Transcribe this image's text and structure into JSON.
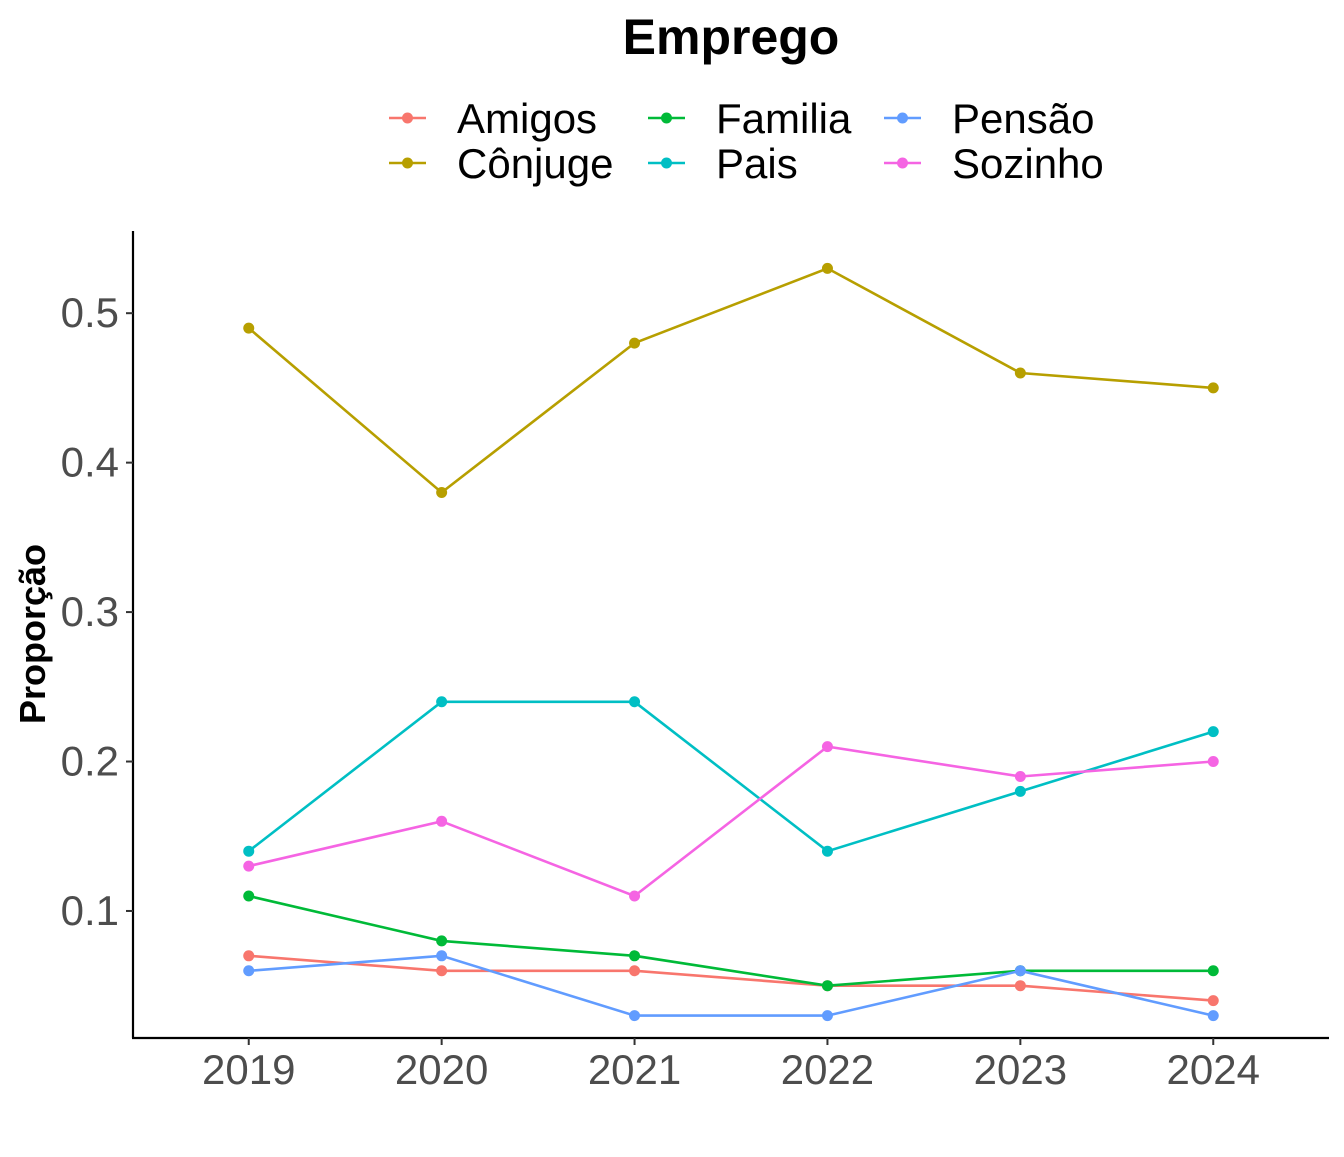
{
  "chart_data": {
    "type": "line",
    "title": "Emprego",
    "xlabel": "",
    "ylabel": "Proporção",
    "categories": [
      "2019",
      "2020",
      "2021",
      "2022",
      "2023",
      "2024"
    ],
    "ylim": [
      0.015,
      0.555
    ],
    "yticks": [
      0.1,
      0.2,
      0.3,
      0.4,
      0.5
    ],
    "ytick_labels": [
      "0.1",
      "0.2",
      "0.3",
      "0.4",
      "0.5"
    ],
    "grid": false,
    "legend_position": "top",
    "series": [
      {
        "name": "Amigos",
        "color": "#F8766D",
        "values": [
          0.07,
          0.06,
          0.06,
          0.05,
          0.05,
          0.04
        ]
      },
      {
        "name": "Cônjuge",
        "color": "#B79F00",
        "values": [
          0.49,
          0.38,
          0.48,
          0.53,
          0.46,
          0.45
        ]
      },
      {
        "name": "Familia",
        "color": "#00BA38",
        "values": [
          0.11,
          0.08,
          0.07,
          0.05,
          0.06,
          0.06
        ]
      },
      {
        "name": "Pais",
        "color": "#00BFC4",
        "values": [
          0.14,
          0.24,
          0.24,
          0.14,
          0.18,
          0.22
        ]
      },
      {
        "name": "Pensão",
        "color": "#619CFF",
        "values": [
          0.06,
          0.07,
          0.03,
          0.03,
          0.06,
          0.03
        ]
      },
      {
        "name": "Sozinho",
        "color": "#F564E3",
        "values": [
          0.13,
          0.16,
          0.11,
          0.21,
          0.19,
          0.2
        ]
      }
    ]
  }
}
